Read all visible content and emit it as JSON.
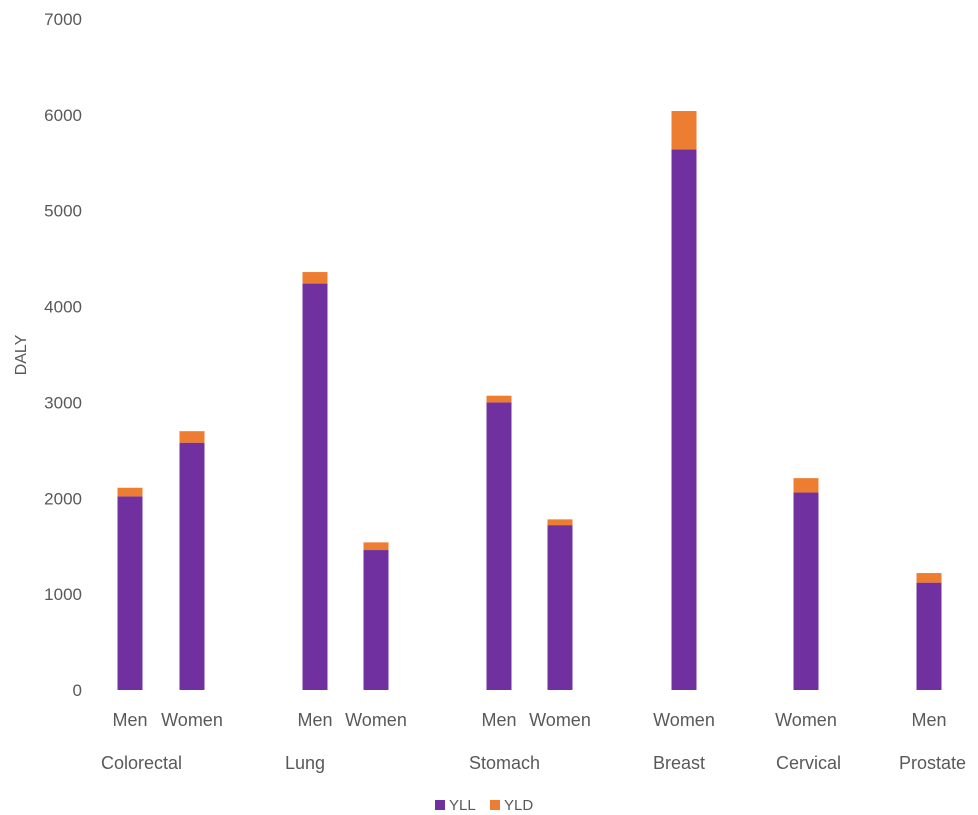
{
  "chart_data": {
    "type": "bar",
    "stacked": true,
    "ylabel": "DALY",
    "ylim": [
      0,
      7000
    ],
    "yticks": [
      0,
      1000,
      2000,
      3000,
      4000,
      5000,
      6000,
      7000
    ],
    "grid": false,
    "legend_position": "bottom",
    "groups": [
      "Colorectal",
      "Lung",
      "Stomach",
      "Breast",
      "Cervical",
      "Prostate"
    ],
    "bars": [
      {
        "group": "Colorectal",
        "label": "Men",
        "yll": 2020,
        "yld": 90
      },
      {
        "group": "Colorectal",
        "label": "Women",
        "yll": 2580,
        "yld": 120
      },
      {
        "group": "Lung",
        "label": "Men",
        "yll": 4240,
        "yld": 120
      },
      {
        "group": "Lung",
        "label": "Women",
        "yll": 1460,
        "yld": 80
      },
      {
        "group": "Stomach",
        "label": "Men",
        "yll": 3000,
        "yld": 70
      },
      {
        "group": "Stomach",
        "label": "Women",
        "yll": 1720,
        "yld": 60
      },
      {
        "group": "Breast",
        "label": "Women",
        "yll": 5640,
        "yld": 400
      },
      {
        "group": "Cervical",
        "label": "Women",
        "yll": 2060,
        "yld": 150
      },
      {
        "group": "Prostate",
        "label": "Men",
        "yll": 1120,
        "yld": 100
      }
    ],
    "series": [
      {
        "name": "YLL",
        "color": "#7030a0"
      },
      {
        "name": "YLD",
        "color": "#ed7d31"
      }
    ]
  }
}
